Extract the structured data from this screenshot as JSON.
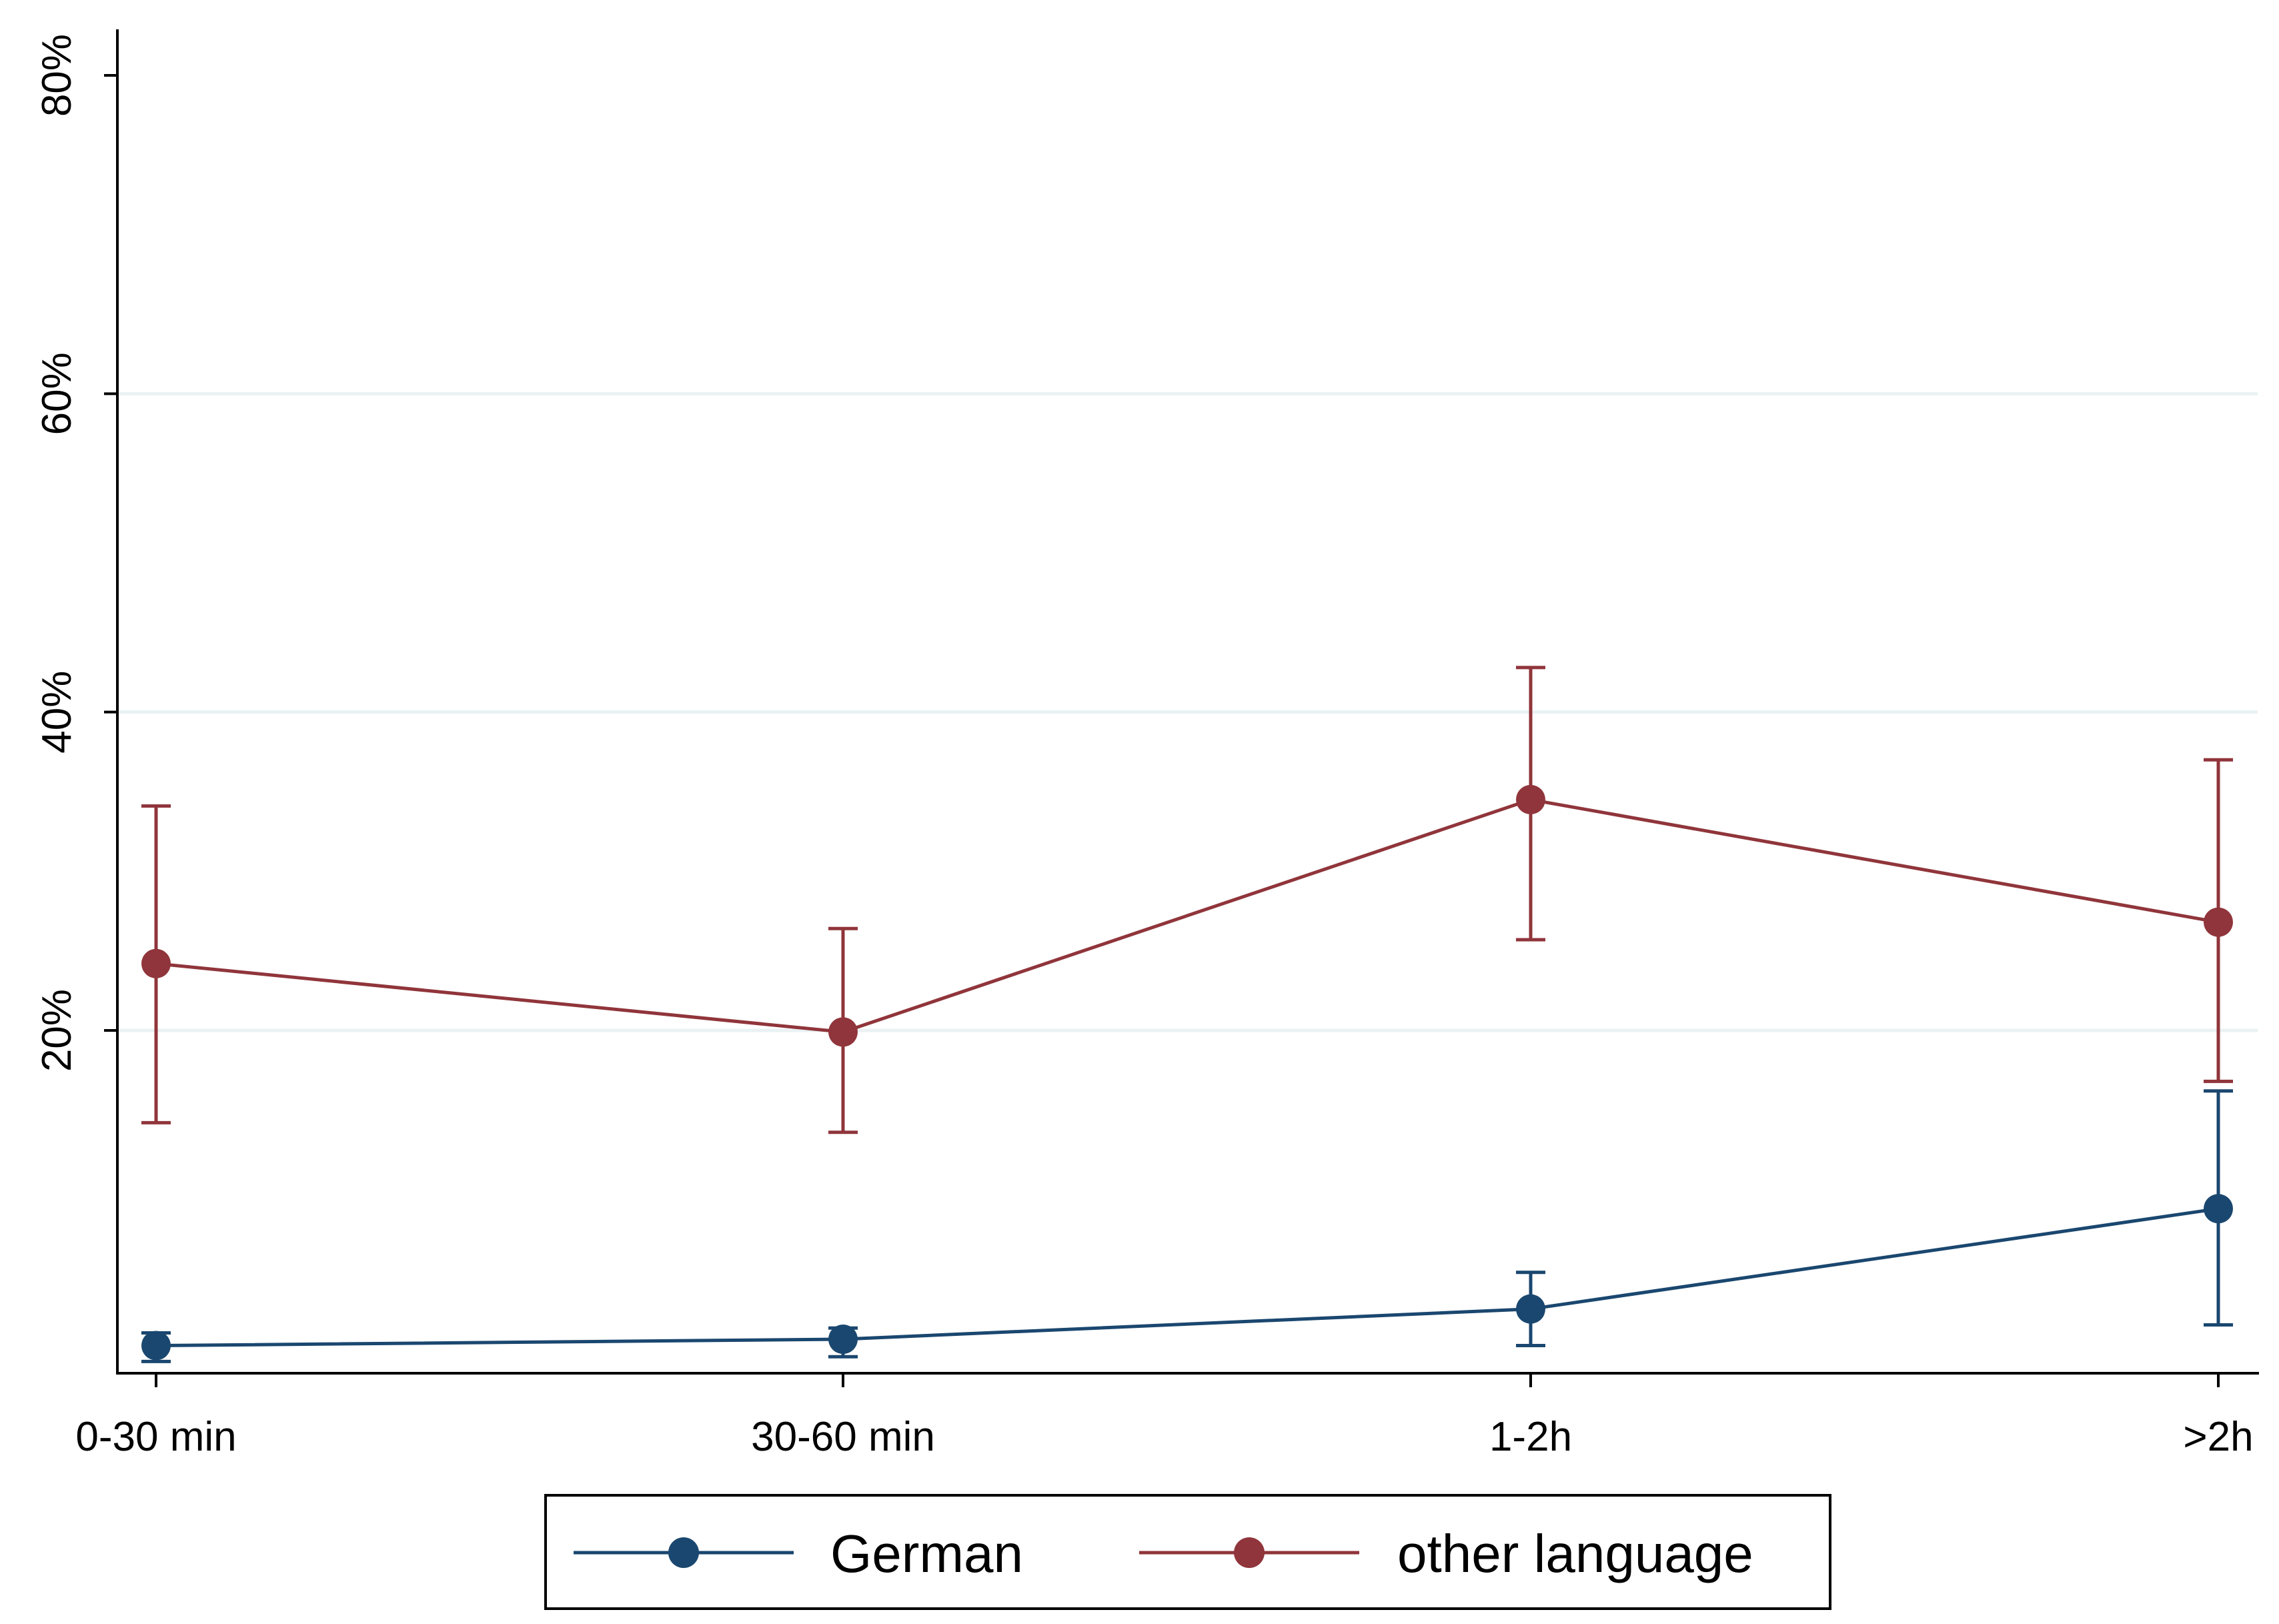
{
  "chart_data": {
    "type": "line",
    "title": "",
    "xlabel": "",
    "ylabel": "",
    "categories": [
      "0-30 min",
      "30-60 min",
      "1-2h",
      ">2h"
    ],
    "y_ticks": [
      20,
      40,
      60,
      80
    ],
    "y_tick_labels": [
      "20%",
      "40%",
      "60%",
      "80%"
    ],
    "ylim": [
      -1.3,
      82
    ],
    "grid": true,
    "legend_position": "bottom",
    "series": [
      {
        "name": "German",
        "color": "#1a476f",
        "values": [
          0.2,
          0.6,
          2.5,
          8.8
        ],
        "ci_low": [
          -0.8,
          -0.5,
          0.2,
          1.5
        ],
        "ci_high": [
          1.0,
          1.3,
          4.8,
          16.2
        ]
      },
      {
        "name": "other language",
        "color": "#90353b",
        "values": [
          24.2,
          19.9,
          34.5,
          26.8
        ],
        "ci_low": [
          14.2,
          13.6,
          25.7,
          16.8
        ],
        "ci_high": [
          34.1,
          26.4,
          42.8,
          37.0
        ]
      }
    ]
  }
}
